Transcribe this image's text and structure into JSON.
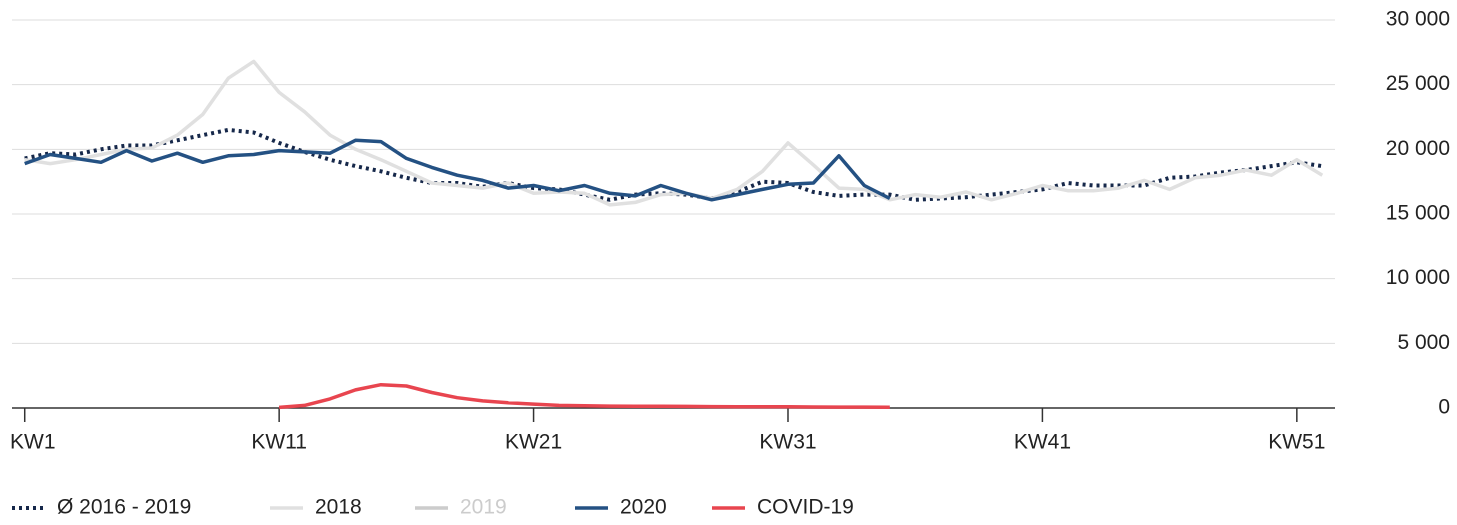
{
  "chart_data": {
    "type": "line",
    "x": [
      1,
      2,
      3,
      4,
      5,
      6,
      7,
      8,
      9,
      10,
      11,
      12,
      13,
      14,
      15,
      16,
      17,
      18,
      19,
      20,
      21,
      22,
      23,
      24,
      25,
      26,
      27,
      28,
      29,
      30,
      31,
      32,
      33,
      34,
      35,
      36,
      37,
      38,
      39,
      40,
      41,
      42,
      43,
      44,
      45,
      46,
      47,
      48,
      49,
      50,
      51,
      52
    ],
    "xlim": [
      0.5,
      52.5
    ],
    "xticks": [
      {
        "value": 1,
        "label": "KW1"
      },
      {
        "value": 11,
        "label": "KW11"
      },
      {
        "value": 21,
        "label": "KW21"
      },
      {
        "value": 31,
        "label": "KW31"
      },
      {
        "value": 41,
        "label": "KW41"
      },
      {
        "value": 51,
        "label": "KW51"
      }
    ],
    "ylim": [
      0,
      30000
    ],
    "yticks": [
      0,
      {
        "value": 5000,
        "label": "5 000"
      },
      {
        "value": 10000,
        "label": "10 000"
      },
      {
        "value": 15000,
        "label": "15 000"
      },
      {
        "value": 20000,
        "label": "20 000"
      },
      {
        "value": 25000,
        "label": "25 000"
      },
      {
        "value": 30000,
        "label": "30 000"
      }
    ],
    "grid": true,
    "series": [
      {
        "name": "Ø 2016 - 2019",
        "color": "#16284a",
        "style": "dotted",
        "values": [
          19300,
          19700,
          19600,
          20000,
          20300,
          20300,
          20700,
          21100,
          21500,
          21300,
          20500,
          19800,
          19200,
          18700,
          18300,
          17800,
          17400,
          17400,
          17100,
          17400,
          17000,
          16900,
          16500,
          16100,
          16500,
          16600,
          16500,
          16200,
          16700,
          17500,
          17400,
          16700,
          16400,
          16500,
          16500,
          16100,
          16200,
          16300,
          16500,
          16700,
          16900,
          17400,
          17200,
          17200,
          17200,
          17800,
          17900,
          18200,
          18400,
          18700,
          19000,
          18700
        ]
      },
      {
        "name": "2018",
        "color": "#e0e0e0",
        "style": "solid",
        "values": [
          19200,
          18900,
          19200,
          19600,
          20000,
          20100,
          21100,
          22700,
          25500,
          26800,
          24400,
          22900,
          21100,
          20000,
          19200,
          18300,
          17400,
          17200,
          17000,
          17400,
          16600,
          16700,
          16600,
          15700,
          15900,
          16500,
          16600,
          16200,
          16900,
          18300,
          20500,
          18800,
          17000,
          16900,
          16100,
          16500,
          16300,
          16700,
          16100,
          16600,
          17200,
          16800,
          16800,
          17000,
          17600,
          16900,
          17800,
          18000,
          18400,
          18000,
          19200,
          18000
        ]
      },
      {
        "name": "2019",
        "color": "#cccccc",
        "style": "solid",
        "visible": false
      },
      {
        "name": "2020",
        "color": "#245183",
        "style": "solid",
        "values": [
          18900,
          19600,
          19300,
          19000,
          19900,
          19100,
          19700,
          19000,
          19500,
          19600,
          19900,
          19800,
          19700,
          20700,
          20600,
          19300,
          18600,
          18000,
          17600,
          17000,
          17200,
          16800,
          17200,
          16600,
          16400,
          17200,
          16600,
          16100,
          16500,
          16900,
          17300,
          17400,
          19500,
          17200,
          16200,
          null,
          null,
          null,
          null,
          null,
          null,
          null,
          null,
          null,
          null,
          null,
          null,
          null,
          null,
          null,
          null,
          null
        ]
      },
      {
        "name": "COVID-19",
        "color": "#e8454f",
        "style": "solid",
        "values": [
          null,
          null,
          null,
          null,
          null,
          null,
          null,
          null,
          null,
          null,
          50,
          200,
          700,
          1400,
          1800,
          1700,
          1200,
          800,
          550,
          400,
          300,
          200,
          170,
          150,
          140,
          130,
          120,
          110,
          100,
          90,
          90,
          80,
          70,
          70,
          60,
          null,
          null,
          null,
          null,
          null,
          null,
          null,
          null,
          null,
          null,
          null,
          null,
          null,
          null,
          null,
          null,
          null
        ]
      }
    ]
  }
}
